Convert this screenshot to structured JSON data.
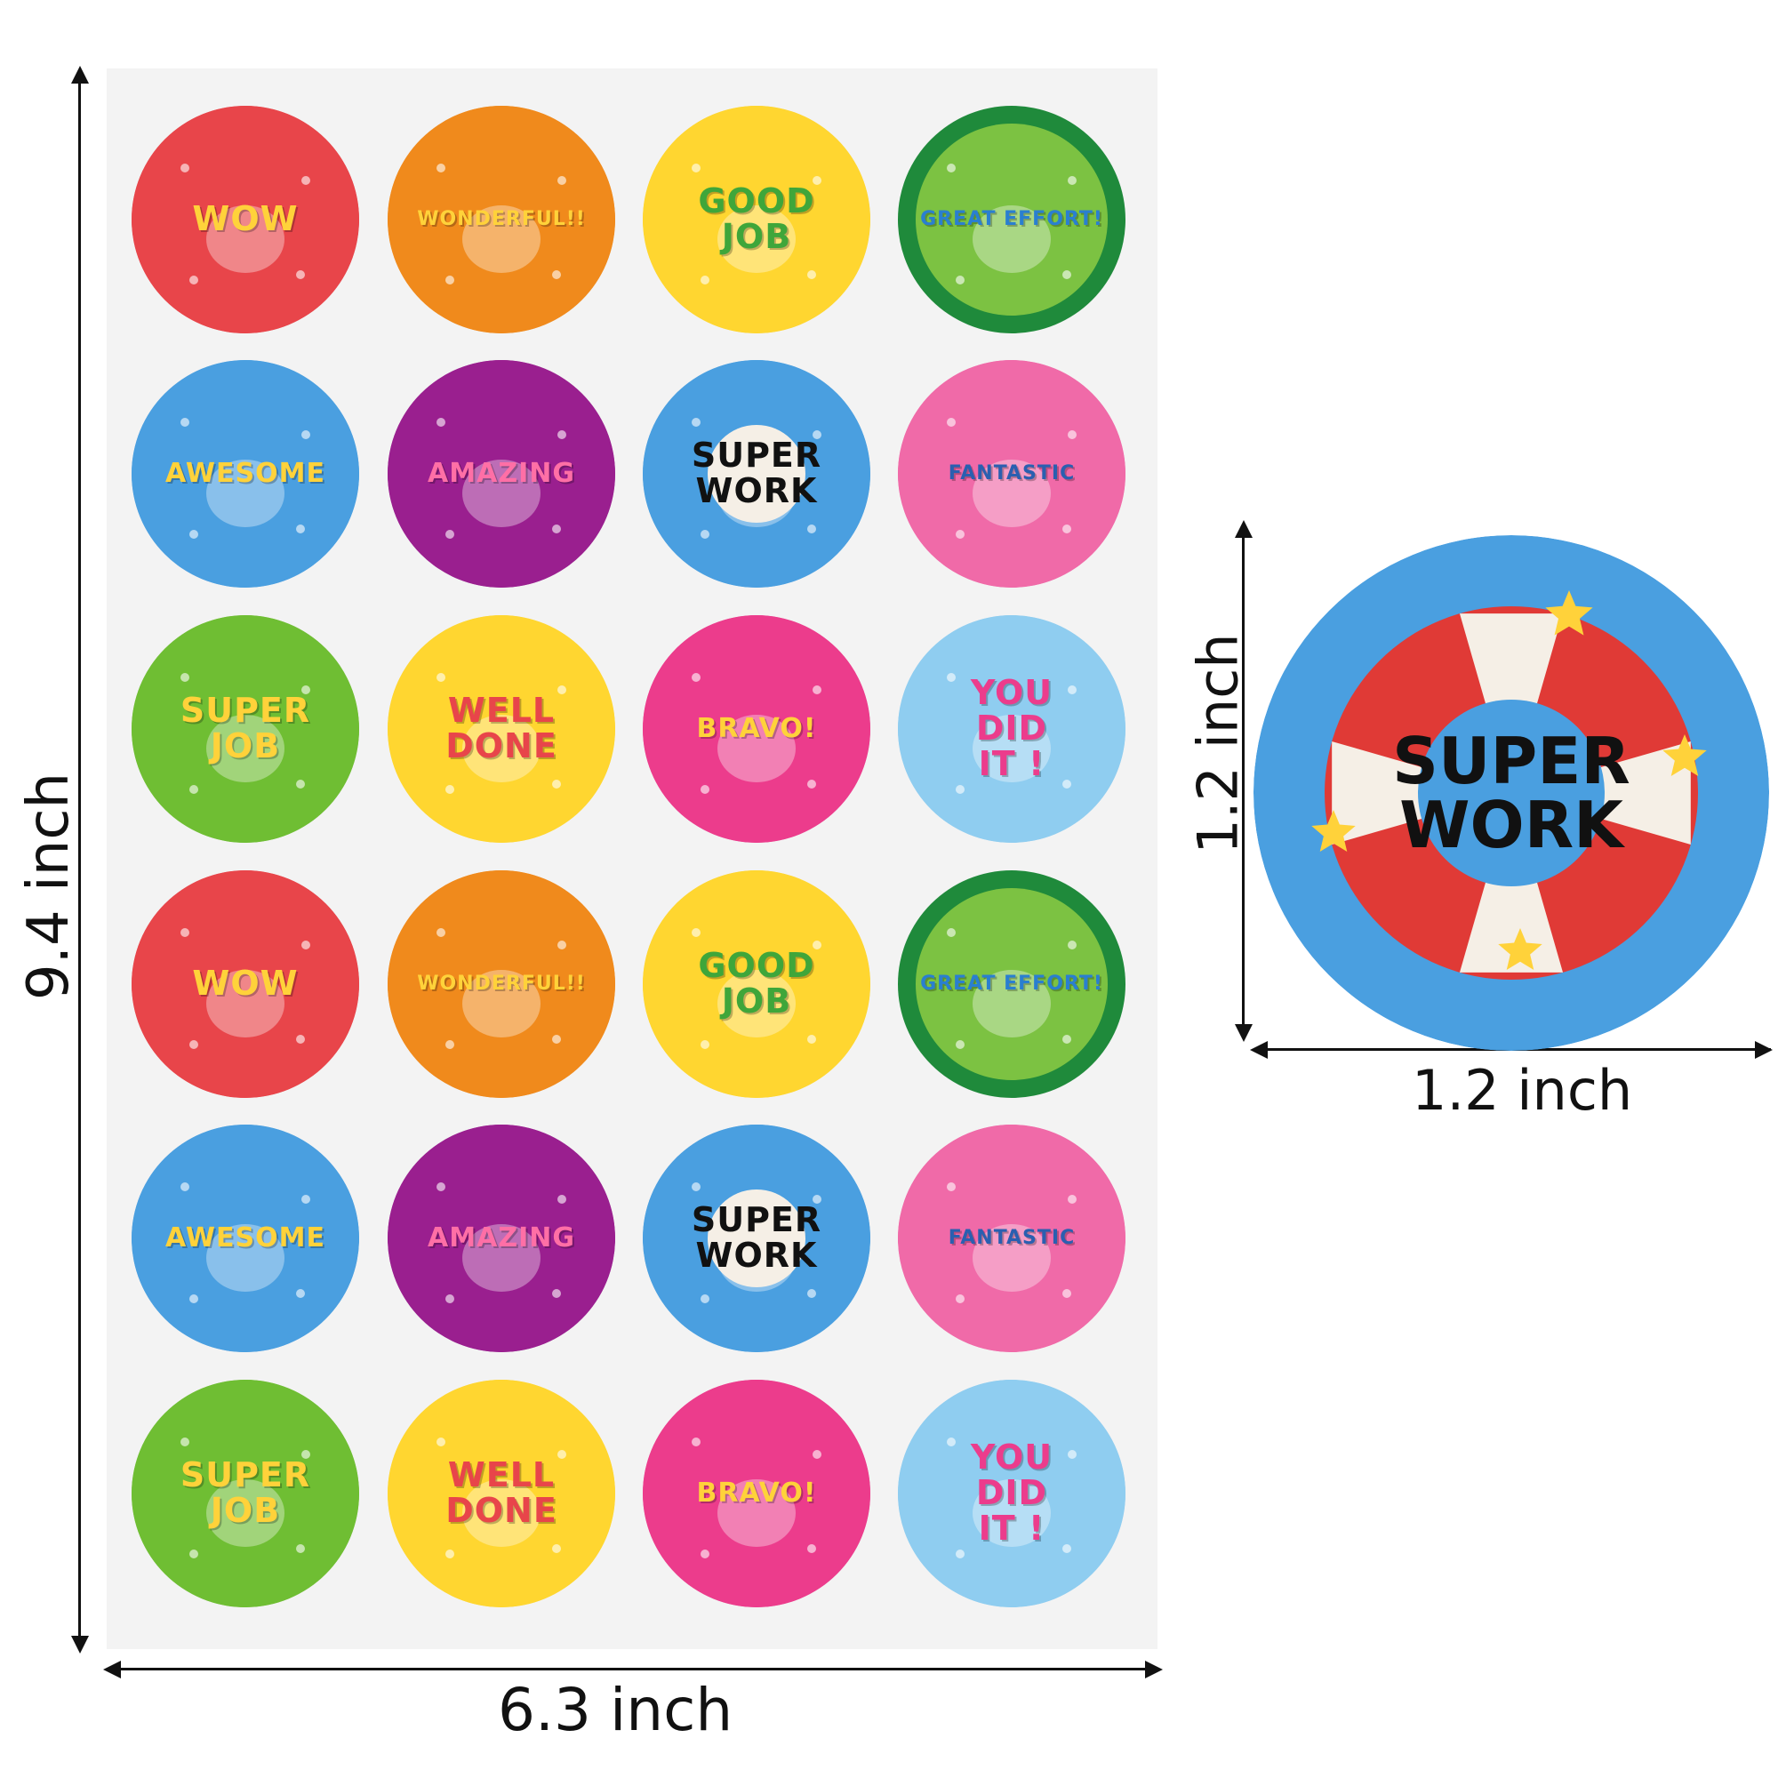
{
  "dimensions": {
    "sheet_height": "9.4 inch",
    "sheet_width": "6.3 inch",
    "sticker_height": "1.2 inch",
    "sticker_width": "1.2 inch"
  },
  "stickers": [
    {
      "text": "WOW",
      "bg": "#e8454a",
      "ring": "#e8454a",
      "textColor": "#ffd23a",
      "icon": "pineapple-icon"
    },
    {
      "text": "WONDERFUL!!",
      "bg": "#f08a1c",
      "ring": "#f08a1c",
      "textColor": "#ffd23a",
      "icon": "mango-icon"
    },
    {
      "text": "GOOD\nJOB",
      "bg": "#ffd630",
      "ring": "#ffd630",
      "textColor": "#3fa63a",
      "icon": "watermelon-icon"
    },
    {
      "text": "GREAT EFFORT!",
      "bg": "#7cc242",
      "ring": "#1f8a3b",
      "textColor": "#2a7fd0",
      "icon": "lemon-icon"
    },
    {
      "text": "AWESOME",
      "bg": "#4a9fe0",
      "ring": "#4a9fe0",
      "textColor": "#ffd23a",
      "icon": "duck-float-icon"
    },
    {
      "text": "AMAZING",
      "bg": "#9a1f8f",
      "ring": "#9a1f8f",
      "textColor": "#ff6fa6",
      "icon": "cactus-icon"
    },
    {
      "text": "SUPER\nWORK",
      "bg": "#4a9fe0",
      "ring": "#4a9fe0",
      "textColor": "#111111",
      "icon": "life-ring-icon"
    },
    {
      "text": "FANTASTIC",
      "bg": "#f06aa8",
      "ring": "#f06aa8",
      "textColor": "#2a5fb0",
      "icon": "flip-flops-icon"
    },
    {
      "text": "SUPER\nJOB",
      "bg": "#6fbe33",
      "ring": "#6fbe33",
      "textColor": "#ffd23a",
      "icon": "crab-icon"
    },
    {
      "text": "WELL\nDONE",
      "bg": "#ffd630",
      "ring": "#ffd630",
      "textColor": "#e8454a",
      "icon": "flamingo-icon"
    },
    {
      "text": "BRAVO!",
      "bg": "#ec3c8c",
      "ring": "#ec3c8c",
      "textColor": "#ffd23a",
      "icon": "juice-icon"
    },
    {
      "text": "YOU\nDID\nIT !",
      "bg": "#8fcdf0",
      "ring": "#8fcdf0",
      "textColor": "#ec3c8c",
      "icon": "ice-cream-icon"
    },
    {
      "text": "WOW",
      "bg": "#e8454a",
      "ring": "#e8454a",
      "textColor": "#ffd23a",
      "icon": "pineapple-icon"
    },
    {
      "text": "WONDERFUL!!",
      "bg": "#f08a1c",
      "ring": "#f08a1c",
      "textColor": "#ffd23a",
      "icon": "mango-icon"
    },
    {
      "text": "GOOD\nJOB",
      "bg": "#ffd630",
      "ring": "#ffd630",
      "textColor": "#3fa63a",
      "icon": "watermelon-icon"
    },
    {
      "text": "GREAT EFFORT!",
      "bg": "#7cc242",
      "ring": "#1f8a3b",
      "textColor": "#2a7fd0",
      "icon": "lemon-icon"
    },
    {
      "text": "AWESOME",
      "bg": "#4a9fe0",
      "ring": "#4a9fe0",
      "textColor": "#ffd23a",
      "icon": "duck-float-icon"
    },
    {
      "text": "AMAZING",
      "bg": "#9a1f8f",
      "ring": "#9a1f8f",
      "textColor": "#ff6fa6",
      "icon": "cactus-icon"
    },
    {
      "text": "SUPER\nWORK",
      "bg": "#4a9fe0",
      "ring": "#4a9fe0",
      "textColor": "#111111",
      "icon": "life-ring-icon"
    },
    {
      "text": "FANTASTIC",
      "bg": "#f06aa8",
      "ring": "#f06aa8",
      "textColor": "#2a5fb0",
      "icon": "flip-flops-icon"
    },
    {
      "text": "SUPER\nJOB",
      "bg": "#6fbe33",
      "ring": "#6fbe33",
      "textColor": "#ffd23a",
      "icon": "crab-icon"
    },
    {
      "text": "WELL\nDONE",
      "bg": "#ffd630",
      "ring": "#ffd630",
      "textColor": "#e8454a",
      "icon": "flamingo-icon"
    },
    {
      "text": "BRAVO!",
      "bg": "#ec3c8c",
      "ring": "#ec3c8c",
      "textColor": "#ffd23a",
      "icon": "juice-icon"
    },
    {
      "text": "YOU\nDID\nIT !",
      "bg": "#8fcdf0",
      "ring": "#8fcdf0",
      "textColor": "#ec3c8c",
      "icon": "ice-cream-icon"
    }
  ],
  "featured": {
    "text": "SUPER\nWORK",
    "bg": "#4a9fe0",
    "ring_red": "#e03a36",
    "ring_white": "#f5efe6",
    "star": "#ffd23a",
    "icon": "life-ring-icon"
  }
}
